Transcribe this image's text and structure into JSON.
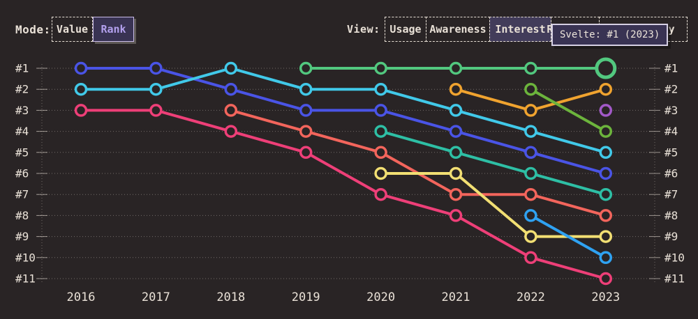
{
  "header": {
    "mode": {
      "label": "Mode:",
      "options": [
        {
          "label": "Value",
          "active": false
        },
        {
          "label": "Rank",
          "active": true
        }
      ]
    },
    "view": {
      "label": "View:",
      "options": [
        {
          "label": "Usage",
          "active": false
        },
        {
          "label": "Awareness",
          "active": false
        },
        {
          "label": "Interest",
          "active": true
        },
        {
          "label": "Retention",
          "active": false
        },
        {
          "label": "Positivity",
          "active": false
        }
      ]
    }
  },
  "tooltip": {
    "text": "Svelte: #1 (2023)"
  },
  "ui_colors": {
    "background": "#292425",
    "text": "#e9e1d7",
    "accent_purple": "#b3a0ee",
    "panel_purple": "#393353"
  },
  "chart_data": {
    "type": "line",
    "variant": "bump-rank",
    "title": "",
    "xlabel": "",
    "ylabel": "",
    "legend": "none",
    "grid": "dotted-horizontal",
    "ylim": [
      1,
      11
    ],
    "x": [
      "2016",
      "2017",
      "2018",
      "2019",
      "2020",
      "2021",
      "2022",
      "2023"
    ],
    "rank_labels": [
      "#1",
      "#2",
      "#3",
      "#4",
      "#5",
      "#6",
      "#7",
      "#8",
      "#9",
      "#10",
      "#11"
    ],
    "highlight": {
      "series": "Svelte",
      "year": "2023",
      "rank": 1,
      "tooltip": "Svelte: #1 (2023)"
    },
    "series": [
      {
        "name": "series-blue",
        "color": "#4a54e6",
        "ranks": [
          1,
          1,
          2,
          3,
          3,
          4,
          5,
          6
        ]
      },
      {
        "name": "series-cyan",
        "color": "#41c9e9",
        "ranks": [
          2,
          2,
          1,
          2,
          2,
          3,
          4,
          5
        ]
      },
      {
        "name": "series-pink",
        "color": "#ee3f78",
        "ranks": [
          3,
          3,
          4,
          5,
          7,
          8,
          10,
          11
        ]
      },
      {
        "name": "series-coral",
        "color": "#f3655c",
        "ranks": [
          null,
          null,
          3,
          4,
          5,
          7,
          7,
          8
        ]
      },
      {
        "name": "Svelte",
        "color": "#52c87f",
        "ranks": [
          null,
          null,
          null,
          1,
          1,
          1,
          1,
          1
        ],
        "highlight_last": true
      },
      {
        "name": "series-teal",
        "color": "#2ebfa5",
        "ranks": [
          null,
          null,
          null,
          null,
          4,
          5,
          6,
          7
        ]
      },
      {
        "name": "series-yellow",
        "color": "#f2df73",
        "ranks": [
          null,
          null,
          null,
          null,
          6,
          6,
          9,
          9
        ]
      },
      {
        "name": "series-orange",
        "color": "#f0a32f",
        "ranks": [
          null,
          null,
          null,
          null,
          null,
          2,
          3,
          2
        ]
      },
      {
        "name": "series-green2",
        "color": "#6cb43c",
        "ranks": [
          null,
          null,
          null,
          null,
          null,
          null,
          2,
          4
        ]
      },
      {
        "name": "series-sky",
        "color": "#2fa2f2",
        "ranks": [
          null,
          null,
          null,
          null,
          null,
          null,
          8,
          10
        ]
      },
      {
        "name": "series-purple",
        "color": "#a259c8",
        "ranks": [
          null,
          null,
          null,
          null,
          null,
          null,
          null,
          3
        ]
      }
    ]
  }
}
